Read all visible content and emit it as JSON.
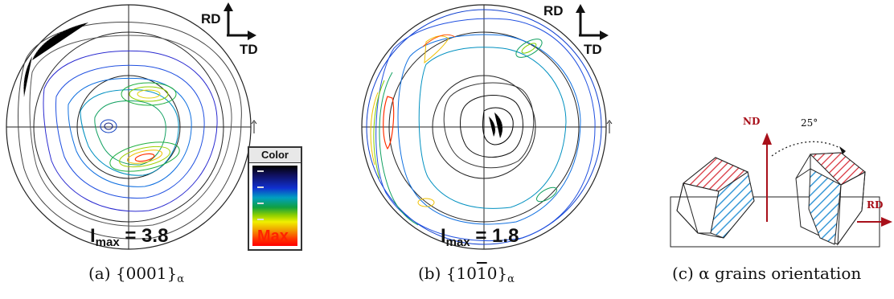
{
  "panels": [
    {
      "caption_prefix": "(a) {0001}",
      "caption_sub": "α",
      "imax_label": "I",
      "imax_sub": "max",
      "imax_value": "= 3.8"
    },
    {
      "caption_prefix": "(b) {10",
      "caption_over": "1",
      "caption_mid": "0}",
      "caption_sub": "α",
      "imax_label": "I",
      "imax_sub": "max",
      "imax_value": "= 1.8"
    },
    {
      "caption": "(c) α grains orientation"
    }
  ],
  "axes": {
    "rd": "RD",
    "td": "TD",
    "nd": "ND",
    "angle": "25°"
  },
  "legend": {
    "title": "Color",
    "max": "Max"
  },
  "colors": {
    "accent_red": "#b0101a",
    "hatch_blue": "#3a9ad8",
    "hatch_red": "#d8303a"
  }
}
